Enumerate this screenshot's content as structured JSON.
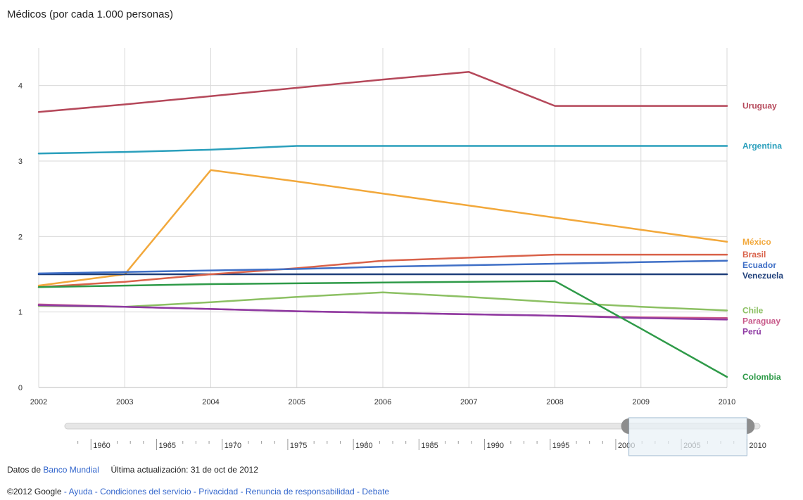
{
  "title": "Médicos (por cada 1.000 personas)",
  "timeline": {
    "ticks": [
      "1960",
      "1965",
      "1970",
      "1975",
      "1980",
      "1985",
      "1990",
      "1995",
      "2000",
      "2005",
      "2010"
    ],
    "range_start": 2001,
    "range_end": 2010
  },
  "footer": {
    "line1": {
      "prefix": "Datos de",
      "source_link": "Banco Mundial",
      "updated": "Última actualización: 31 de oct de 2012"
    },
    "line2": {
      "copyright": "©2012 Google",
      "links": [
        "Ayuda",
        "Condiciones del servicio",
        "Privacidad",
        "Renuncia de responsabilidad",
        "Debate"
      ]
    }
  },
  "chart_data": {
    "type": "line",
    "title": "Médicos (por cada 1.000 personas)",
    "x": [
      "2002",
      "2003",
      "2004",
      "2005",
      "2006",
      "2007",
      "2008",
      "2009",
      "2010"
    ],
    "ylim": [
      0,
      4.5
    ],
    "yticks": [
      0,
      1,
      2,
      3,
      4
    ],
    "grid": true,
    "legend": "right",
    "series": [
      {
        "name": "Uruguay",
        "color": "#b5485a",
        "values": [
          3.65,
          3.75,
          3.86,
          3.97,
          4.08,
          4.18,
          3.73,
          3.73,
          3.73
        ]
      },
      {
        "name": "Argentina",
        "color": "#2a9fbc",
        "values": [
          3.1,
          3.12,
          3.15,
          3.2,
          3.2,
          3.2,
          3.2,
          3.2,
          3.2
        ]
      },
      {
        "name": "México",
        "color": "#f2a83b",
        "values": [
          1.35,
          1.5,
          2.88,
          2.73,
          2.57,
          2.41,
          2.25,
          2.09,
          1.93
        ]
      },
      {
        "name": "Venezuela",
        "color": "#1f3f7a",
        "values": [
          1.5,
          1.5,
          1.5,
          1.5,
          1.5,
          1.5,
          1.5,
          1.5,
          1.5
        ]
      },
      {
        "name": "Brasil",
        "color": "#d9624a",
        "values": [
          1.33,
          1.4,
          1.5,
          1.58,
          1.68,
          1.72,
          1.76,
          1.76,
          1.76
        ]
      },
      {
        "name": "Ecuador",
        "color": "#3f6fc6",
        "values": [
          1.51,
          1.53,
          1.55,
          1.57,
          1.6,
          1.62,
          1.64,
          1.66,
          1.68
        ]
      },
      {
        "name": "Paraguay",
        "color": "#c85a8a",
        "values": [
          1.1,
          1.07,
          1.04,
          1.01,
          0.99,
          0.97,
          0.95,
          0.93,
          0.92
        ]
      },
      {
        "name": "Chile",
        "color": "#8cc063",
        "values": [
          1.08,
          1.07,
          1.13,
          1.2,
          1.26,
          1.2,
          1.13,
          1.07,
          1.02
        ]
      },
      {
        "name": "Perú",
        "color": "#8e3aa3",
        "values": [
          1.09,
          1.07,
          1.04,
          1.01,
          0.99,
          0.97,
          0.95,
          0.92,
          0.9
        ]
      },
      {
        "name": "Colombia",
        "color": "#2e9a48",
        "values": [
          1.33,
          1.35,
          1.37,
          1.38,
          1.39,
          1.4,
          1.41,
          0.78,
          0.14
        ]
      }
    ]
  }
}
